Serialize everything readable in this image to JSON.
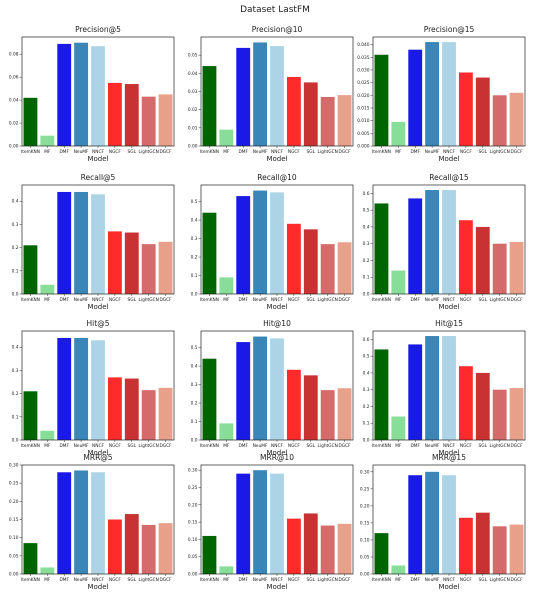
{
  "suptitle": "Dataset LastFM",
  "colors": [
    "#006400",
    "#88dd99",
    "#1a1ae6",
    "#3a86b8",
    "#acd4e6",
    "#ff2a2a",
    "#c83232",
    "#d46a6a",
    "#e8a08a"
  ],
  "chart_data": [
    {
      "type": "bar",
      "title": "Precision@5",
      "xlabel": "Model",
      "ylabel": "",
      "categories": [
        "ItemKNN",
        "MF",
        "DMF",
        "NeuMF",
        "NNCF",
        "NGCF",
        "SGL",
        "LightGCN",
        "DGCF"
      ],
      "values": [
        0.042,
        0.009,
        0.089,
        0.09,
        0.087,
        0.055,
        0.054,
        0.043,
        0.045
      ],
      "ylim": [
        0,
        0.095
      ],
      "yticks": [
        0.0,
        0.02,
        0.04,
        0.06,
        0.08
      ],
      "ytick_labels": [
        "0.00",
        "0.02",
        "0.04",
        "0.06",
        "0.08"
      ]
    },
    {
      "type": "bar",
      "title": "Precision@10",
      "xlabel": "Model",
      "ylabel": "",
      "categories": [
        "ItemKNN",
        "MF",
        "DMF",
        "NeuMF",
        "NNCF",
        "NGCF",
        "SGL",
        "LightGCN",
        "DGCF"
      ],
      "values": [
        0.044,
        0.009,
        0.054,
        0.057,
        0.055,
        0.038,
        0.035,
        0.027,
        0.028
      ],
      "ylim": [
        0,
        0.06
      ],
      "yticks": [
        0.0,
        0.01,
        0.02,
        0.03,
        0.04,
        0.05
      ],
      "ytick_labels": [
        "0.00",
        "0.01",
        "0.02",
        "0.03",
        "0.04",
        "0.05"
      ]
    },
    {
      "type": "bar",
      "title": "Precision@15",
      "xlabel": "Model",
      "ylabel": "",
      "categories": [
        "ItemKNN",
        "MF",
        "DMF",
        "NeuMF",
        "NNCF",
        "NGCF",
        "SGL",
        "LightGCN",
        "DGCF"
      ],
      "values": [
        0.036,
        0.0095,
        0.038,
        0.041,
        0.041,
        0.029,
        0.027,
        0.02,
        0.021
      ],
      "ylim": [
        0,
        0.043
      ],
      "yticks": [
        0.0,
        0.005,
        0.01,
        0.015,
        0.02,
        0.025,
        0.03,
        0.035,
        0.04
      ],
      "ytick_labels": [
        "0.000",
        "0.005",
        "0.010",
        "0.015",
        "0.020",
        "0.025",
        "0.030",
        "0.035",
        "0.040"
      ]
    },
    {
      "type": "bar",
      "title": "Recall@5",
      "xlabel": "Model",
      "ylabel": "",
      "categories": [
        "ItemKNN",
        "MF",
        "DMF",
        "NeuMF",
        "NNCF",
        "NGCF",
        "SGL",
        "LightGCN",
        "DGCF"
      ],
      "values": [
        0.21,
        0.04,
        0.44,
        0.44,
        0.43,
        0.27,
        0.265,
        0.215,
        0.225
      ],
      "ylim": [
        0,
        0.47
      ],
      "yticks": [
        0.0,
        0.1,
        0.2,
        0.3,
        0.4
      ],
      "ytick_labels": [
        "0.0",
        "0.1",
        "0.2",
        "0.3",
        "0.4"
      ]
    },
    {
      "type": "bar",
      "title": "Recall@10",
      "xlabel": "Model",
      "ylabel": "",
      "categories": [
        "ItemKNN",
        "MF",
        "DMF",
        "NeuMF",
        "NNCF",
        "NGCF",
        "SGL",
        "LightGCN",
        "DGCF"
      ],
      "values": [
        0.44,
        0.09,
        0.53,
        0.56,
        0.55,
        0.38,
        0.35,
        0.27,
        0.28
      ],
      "ylim": [
        0,
        0.59
      ],
      "yticks": [
        0.0,
        0.1,
        0.2,
        0.3,
        0.4,
        0.5
      ],
      "ytick_labels": [
        "0.0",
        "0.1",
        "0.2",
        "0.3",
        "0.4",
        "0.5"
      ]
    },
    {
      "type": "bar",
      "title": "Recall@15",
      "xlabel": "Model",
      "ylabel": "",
      "categories": [
        "ItemKNN",
        "MF",
        "DMF",
        "NeuMF",
        "NNCF",
        "NGCF",
        "SGL",
        "LightGCN",
        "DGCF"
      ],
      "values": [
        0.54,
        0.14,
        0.57,
        0.62,
        0.62,
        0.44,
        0.4,
        0.3,
        0.31
      ],
      "ylim": [
        0,
        0.65
      ],
      "yticks": [
        0.0,
        0.1,
        0.2,
        0.3,
        0.4,
        0.5,
        0.6
      ],
      "ytick_labels": [
        "0.0",
        "0.1",
        "0.2",
        "0.3",
        "0.4",
        "0.5",
        "0.6"
      ]
    },
    {
      "type": "bar",
      "title": "Hit@5",
      "xlabel": "Model",
      "ylabel": "",
      "categories": [
        "ItemKNN",
        "MF",
        "DMF",
        "NeuMF",
        "NNCF",
        "NGCF",
        "SGL",
        "LightGCN",
        "DGCF"
      ],
      "values": [
        0.21,
        0.04,
        0.44,
        0.44,
        0.43,
        0.27,
        0.265,
        0.215,
        0.225
      ],
      "ylim": [
        0,
        0.47
      ],
      "yticks": [
        0.0,
        0.1,
        0.2,
        0.3,
        0.4
      ],
      "ytick_labels": [
        "0.0",
        "0.1",
        "0.2",
        "0.3",
        "0.4"
      ]
    },
    {
      "type": "bar",
      "title": "Hit@10",
      "xlabel": "Model",
      "ylabel": "",
      "categories": [
        "ItemKNN",
        "MF",
        "DMF",
        "NeuMF",
        "NNCF",
        "NGCF",
        "SGL",
        "LightGCN",
        "DGCF"
      ],
      "values": [
        0.44,
        0.09,
        0.53,
        0.56,
        0.55,
        0.38,
        0.35,
        0.27,
        0.28
      ],
      "ylim": [
        0,
        0.59
      ],
      "yticks": [
        0.0,
        0.1,
        0.2,
        0.3,
        0.4,
        0.5
      ],
      "ytick_labels": [
        "0.0",
        "0.1",
        "0.2",
        "0.3",
        "0.4",
        "0.5"
      ]
    },
    {
      "type": "bar",
      "title": "Hit@15",
      "xlabel": "Model",
      "ylabel": "",
      "categories": [
        "ItemKNN",
        "MF",
        "DMF",
        "NeuMF",
        "NNCF",
        "NGCF",
        "SGL",
        "LightGCN",
        "DGCF"
      ],
      "values": [
        0.54,
        0.14,
        0.57,
        0.62,
        0.62,
        0.44,
        0.4,
        0.3,
        0.31
      ],
      "ylim": [
        0,
        0.65
      ],
      "yticks": [
        0.0,
        0.1,
        0.2,
        0.3,
        0.4,
        0.5,
        0.6
      ],
      "ytick_labels": [
        "0.0",
        "0.1",
        "0.2",
        "0.3",
        "0.4",
        "0.5",
        "0.6"
      ]
    },
    {
      "type": "bar",
      "title": "MRR@5",
      "xlabel": "Model",
      "ylabel": "",
      "categories": [
        "ItemKNN",
        "MF",
        "DMF",
        "NeuMF",
        "NNCF",
        "NGCF",
        "SGL",
        "LightGCN",
        "DGCF"
      ],
      "values": [
        0.085,
        0.018,
        0.28,
        0.285,
        0.28,
        0.15,
        0.165,
        0.135,
        0.14
      ],
      "ylim": [
        0,
        0.3
      ],
      "yticks": [
        0.0,
        0.05,
        0.1,
        0.15,
        0.2,
        0.25,
        0.3
      ],
      "ytick_labels": [
        "0.00",
        "0.05",
        "0.10",
        "0.15",
        "0.20",
        "0.25",
        "0.30"
      ]
    },
    {
      "type": "bar",
      "title": "MRR@10",
      "xlabel": "Model",
      "ylabel": "",
      "categories": [
        "ItemKNN",
        "MF",
        "DMF",
        "NeuMF",
        "NNCF",
        "NGCF",
        "SGL",
        "LightGCN",
        "DGCF"
      ],
      "values": [
        0.11,
        0.022,
        0.29,
        0.3,
        0.29,
        0.16,
        0.175,
        0.14,
        0.145
      ],
      "ylim": [
        0,
        0.315
      ],
      "yticks": [
        0.0,
        0.05,
        0.1,
        0.15,
        0.2,
        0.25,
        0.3
      ],
      "ytick_labels": [
        "0.00",
        "0.05",
        "0.10",
        "0.15",
        "0.20",
        "0.25",
        "0.30"
      ]
    },
    {
      "type": "bar",
      "title": "MRR@15",
      "xlabel": "Model",
      "ylabel": "",
      "categories": [
        "ItemKNN",
        "MF",
        "DMF",
        "NeuMF",
        "NNCF",
        "NGCF",
        "SGL",
        "LightGCN",
        "DGCF"
      ],
      "values": [
        0.12,
        0.025,
        0.29,
        0.3,
        0.29,
        0.165,
        0.18,
        0.14,
        0.145
      ],
      "ylim": [
        0,
        0.32
      ],
      "yticks": [
        0.0,
        0.05,
        0.1,
        0.15,
        0.2,
        0.25,
        0.3
      ],
      "ytick_labels": [
        "0.00",
        "0.05",
        "0.10",
        "0.15",
        "0.20",
        "0.25",
        "0.30"
      ]
    }
  ]
}
